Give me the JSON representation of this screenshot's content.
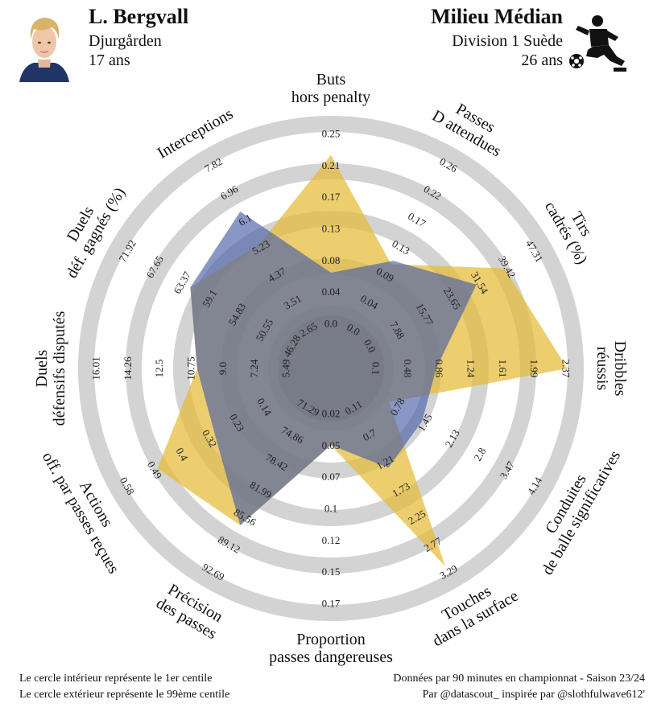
{
  "header": {
    "player_name": "L. Bergvall",
    "club": "Djurgården",
    "player_age": "17 ans",
    "comparison_title": "Milieu Médian",
    "league": "Division 1 Suède",
    "comparison_age": "26 ans"
  },
  "footer": {
    "line1_left": "Le cercle intérieur représente le 1er centile",
    "line2_left": "Le cercle extérieur représente le 99ème centile",
    "line1_right": "Données par 90 minutes en championnat - Saison 23/24",
    "line2_right": "Par @datascout_ inspirée par @slothfulwave612'"
  },
  "colors": {
    "player": "#e5bb36",
    "comparison": "#4a5fa8",
    "rings": "#d3d3d3",
    "center": "#8f8f8f"
  },
  "icons": {
    "player_photo": "player-photo",
    "position_icon": "footballer-kicking-icon"
  },
  "chart_data": {
    "type": "radar",
    "metrics": [
      {
        "label": [
          "Buts",
          "hors penalty"
        ],
        "ticks": [
          "0.0",
          "0.04",
          "0.08",
          "0.13",
          "0.17",
          "0.21",
          "0.25"
        ],
        "player": 0.87,
        "comparison": 0.25
      },
      {
        "label": [
          "Passes",
          "D attendues"
        ],
        "ticks": [
          "0.0",
          "0.04",
          "0.09",
          "0.13",
          "0.17",
          "0.22",
          "0.26"
        ],
        "player": 0.38,
        "comparison": 0.4
      },
      {
        "label": [
          "Tirs",
          "cadrés (%)"
        ],
        "ticks": [
          "0.0",
          "7.88",
          "15.77",
          "23.65",
          "31.54",
          "39.42",
          "47.31"
        ],
        "player": 0.8,
        "comparison": 0.63
      },
      {
        "label": [
          "Dribbles",
          "réussis"
        ],
        "ticks": [
          "0.1",
          "0.48",
          "0.86",
          "1.24",
          "1.61",
          "1.99",
          "2.37"
        ],
        "player": 0.99,
        "comparison": 0.3
      },
      {
        "label": [
          "Conduites",
          "de balle significatives"
        ],
        "ticks": [
          "0.78",
          "1.45",
          "2.13",
          "2.8",
          "3.47",
          "4.14"
        ],
        "player": 0.1,
        "comparison": 0.3
      },
      {
        "label": [
          "Touches",
          "dans la surface"
        ],
        "ticks": [
          "0.11",
          "0.7",
          "1.21",
          "1.73",
          "2.25",
          "2.77",
          "3.29"
        ],
        "player": 0.95,
        "comparison": 0.35
      },
      {
        "label": [
          "Proportion",
          "passes dangereuses"
        ],
        "ticks": [
          "0.02",
          "0.05",
          "0.07",
          "0.1",
          "0.12",
          "0.15",
          "0.17"
        ],
        "player": 0.15,
        "comparison": 0.15
      },
      {
        "label": [
          "Précision",
          "des passes"
        ],
        "ticks": [
          "71.29",
          "74.86",
          "78.42",
          "81.99",
          "85.56",
          "89.12",
          "92.69"
        ],
        "player": 0.7,
        "comparison": 0.7
      },
      {
        "label": [
          "Actions",
          "off. par passes reçues"
        ],
        "ticks": [
          "0.14",
          "0.23",
          "0.32",
          "0.4",
          "0.49",
          "0.58"
        ],
        "player": 0.8,
        "comparison": 0.45
      },
      {
        "label": [
          "Duels",
          "défensifs disputés"
        ],
        "ticks": [
          "5.49",
          "7.24",
          "9.0",
          "10.75",
          "12.5",
          "14.26",
          "16.01"
        ],
        "player": 0.45,
        "comparison": 0.45
      },
      {
        "label": [
          "Duels",
          "déf. gagnés (%)"
        ],
        "ticks": [
          "46.28",
          "50.55",
          "54.83",
          "59.1",
          "63.37",
          "67.65",
          "71.92"
        ],
        "player": 0.6,
        "comparison": 0.6
      },
      {
        "label": [
          "Interceptions"
        ],
        "ticks": [
          "2.65",
          "3.51",
          "4.37",
          "5.23",
          "6.1",
          "6.96",
          "7.82"
        ],
        "player": 0.5,
        "comparison": 0.7
      }
    ]
  }
}
